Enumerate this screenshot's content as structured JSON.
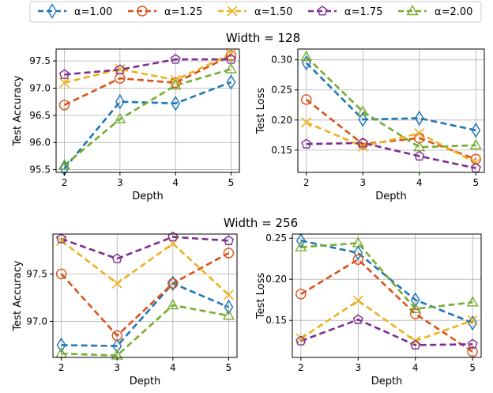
{
  "legend": {
    "items": [
      {
        "label": "α=1.00",
        "color": "#1f77b4",
        "marker": "diamond"
      },
      {
        "label": "α=1.25",
        "color": "#d95319",
        "marker": "circle"
      },
      {
        "label": "α=1.50",
        "color": "#edb120",
        "marker": "x"
      },
      {
        "label": "α=1.75",
        "color": "#7e2f8e",
        "marker": "pentagon"
      },
      {
        "label": "α=2.00",
        "color": "#77ac30",
        "marker": "triangle"
      }
    ]
  },
  "chart_data": [
    {
      "type": "line",
      "group_title": "Width = 128",
      "xlabel": "Depth",
      "ylabel": "Test Accuracy",
      "x": [
        2,
        3,
        4,
        5
      ],
      "xlim": [
        1.85,
        5.15
      ],
      "ylim": [
        95.45,
        97.72
      ],
      "yticks": [
        95.5,
        96.0,
        96.5,
        97.0,
        97.5
      ],
      "ytick_labels": [
        "95.5",
        "96.0",
        "96.5",
        "97.0",
        "97.5"
      ],
      "grid": true,
      "series": [
        {
          "name": "α=1.00",
          "values": [
            95.52,
            96.75,
            96.72,
            97.11
          ]
        },
        {
          "name": "α=1.25",
          "values": [
            96.69,
            97.18,
            97.1,
            97.6
          ]
        },
        {
          "name": "α=1.50",
          "values": [
            97.1,
            97.35,
            97.15,
            97.63
          ]
        },
        {
          "name": "α=1.75",
          "values": [
            97.25,
            97.34,
            97.53,
            97.53
          ]
        },
        {
          "name": "α=2.00",
          "values": [
            95.58,
            96.43,
            97.05,
            97.35
          ]
        }
      ]
    },
    {
      "type": "line",
      "group_title": "",
      "xlabel": "Depth",
      "ylabel": "Test Loss",
      "x": [
        2,
        3,
        4,
        5
      ],
      "xlim": [
        1.85,
        5.15
      ],
      "ylim": [
        0.113,
        0.318
      ],
      "yticks": [
        0.15,
        0.2,
        0.25,
        0.3
      ],
      "ytick_labels": [
        "0.15",
        "0.20",
        "0.25",
        "0.30"
      ],
      "grid": true,
      "series": [
        {
          "name": "α=1.00",
          "values": [
            0.295,
            0.201,
            0.203,
            0.183
          ]
        },
        {
          "name": "α=1.25",
          "values": [
            0.234,
            0.16,
            0.17,
            0.135
          ]
        },
        {
          "name": "α=1.50",
          "values": [
            0.196,
            0.156,
            0.178,
            0.129
          ]
        },
        {
          "name": "α=1.75",
          "values": [
            0.16,
            0.162,
            0.14,
            0.12
          ]
        },
        {
          "name": "α=2.00",
          "values": [
            0.305,
            0.214,
            0.155,
            0.158
          ]
        }
      ]
    },
    {
      "type": "line",
      "group_title": "Width = 256",
      "xlabel": "Depth",
      "ylabel": "Test Accuracy",
      "x": [
        2,
        3,
        4,
        5
      ],
      "xlim": [
        1.85,
        5.15
      ],
      "ylim": [
        96.62,
        97.92
      ],
      "yticks": [
        97.0,
        97.5
      ],
      "ytick_labels": [
        "97.0",
        "97.5"
      ],
      "grid": true,
      "series": [
        {
          "name": "α=1.00",
          "values": [
            96.75,
            96.74,
            97.4,
            97.15
          ]
        },
        {
          "name": "α=1.25",
          "values": [
            97.5,
            96.85,
            97.4,
            97.72
          ]
        },
        {
          "name": "α=1.50",
          "values": [
            97.85,
            97.4,
            97.82,
            97.28
          ]
        },
        {
          "name": "α=1.75",
          "values": [
            97.87,
            97.66,
            97.89,
            97.85
          ]
        },
        {
          "name": "α=2.00",
          "values": [
            96.66,
            96.64,
            97.17,
            97.06
          ]
        }
      ]
    },
    {
      "type": "line",
      "group_title": "",
      "xlabel": "Depth",
      "ylabel": "Test Loss",
      "x": [
        2,
        3,
        4,
        5
      ],
      "xlim": [
        1.85,
        5.15
      ],
      "ylim": [
        0.105,
        0.255
      ],
      "yticks": [
        0.15,
        0.2,
        0.25
      ],
      "ytick_labels": [
        "0.15",
        "0.20",
        "0.25"
      ],
      "grid": true,
      "series": [
        {
          "name": "α=1.00",
          "values": [
            0.247,
            0.232,
            0.175,
            0.147
          ]
        },
        {
          "name": "α=1.25",
          "values": [
            0.182,
            0.224,
            0.158,
            0.112
          ]
        },
        {
          "name": "α=1.50",
          "values": [
            0.128,
            0.174,
            0.125,
            0.15
          ]
        },
        {
          "name": "α=1.75",
          "values": [
            0.125,
            0.151,
            0.12,
            0.121
          ]
        },
        {
          "name": "α=2.00",
          "values": [
            0.239,
            0.244,
            0.164,
            0.172
          ]
        }
      ]
    }
  ]
}
